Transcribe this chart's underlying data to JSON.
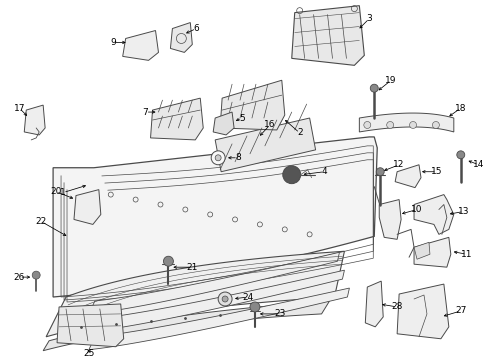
{
  "bg": "#ffffff",
  "lc": "#4a4a4a",
  "tc": "#000000",
  "lw": 0.7,
  "fs": 6.5
}
